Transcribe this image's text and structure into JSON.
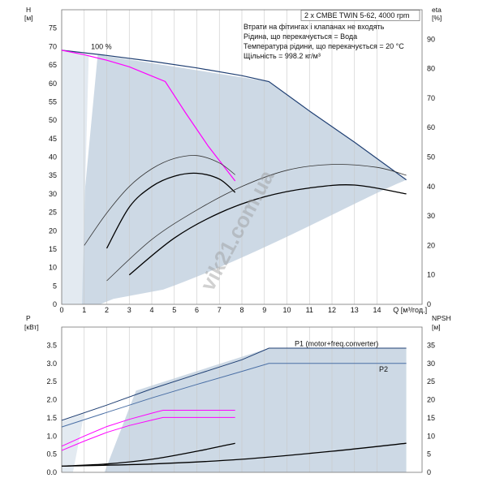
{
  "chart_data": [
    {
      "type": "line",
      "panel": "top",
      "y_label_left": "H",
      "y_unit_left": "[м]",
      "y_label_right": "eta",
      "y_unit_right": "[%]",
      "x_unit": "Q [м³/год.]",
      "xlim": [
        0,
        16
      ],
      "ylim_left": [
        0,
        80
      ],
      "ylim_right": [
        0,
        100
      ],
      "x_ticks": [
        0,
        1,
        2,
        3,
        4,
        5,
        6,
        7,
        8,
        9,
        10,
        11,
        12,
        13,
        14
      ],
      "y_ticks_left": [
        0,
        5,
        10,
        15,
        20,
        25,
        30,
        35,
        40,
        45,
        50,
        55,
        60,
        65,
        70,
        75
      ],
      "y_ticks_right": [
        0,
        10,
        20,
        30,
        40,
        50,
        60,
        70,
        80,
        90
      ],
      "title_box": "2 x CMBE TWIN 5-62, 4000 rpm",
      "notes": [
        "Втрати на фітингах і клапанах не входять",
        "Рідина, що перекачується = Вода",
        "Температура рідини, що перекачується = 20 °C",
        "Щільність = 998.2 кг/м³"
      ],
      "series_label": "100 %",
      "series": [
        {
          "name": "H twin",
          "axis": "left",
          "color": "#1f3f73",
          "x": [
            0,
            2,
            4,
            6,
            8,
            9.2,
            11,
            13,
            15.3
          ],
          "y": [
            69,
            67.6,
            66,
            64.2,
            62.1,
            60.5,
            52.5,
            44,
            33.8
          ]
        },
        {
          "name": "H single",
          "axis": "left",
          "color": "#ff00ff",
          "x": [
            0,
            1,
            2,
            3,
            4,
            4.6,
            5.5,
            6.5,
            7.7
          ],
          "y": [
            69,
            67.8,
            66.3,
            64.5,
            62,
            60.5,
            52,
            43,
            33.5
          ]
        },
        {
          "name": "eta single thin",
          "axis": "right",
          "color": "#333333",
          "x": [
            1,
            2,
            3,
            4,
            5,
            6,
            7,
            7.7
          ],
          "y": [
            20,
            31,
            40,
            46,
            49.5,
            50.5,
            48,
            44
          ]
        },
        {
          "name": "eta single thick",
          "axis": "right",
          "color": "#000000",
          "x": [
            2,
            3,
            4,
            5,
            6,
            7,
            7.7
          ],
          "y": [
            19,
            33,
            40,
            43.5,
            44.5,
            42.5,
            38
          ]
        },
        {
          "name": "eta twin thin",
          "axis": "right",
          "color": "#333333",
          "x": [
            2,
            4,
            6,
            8,
            10,
            12,
            14,
            15.3
          ],
          "y": [
            8,
            22,
            32,
            40,
            45.5,
            47.5,
            46.5,
            43.8
          ]
        },
        {
          "name": "eta twin thick",
          "axis": "right",
          "color": "#000000",
          "x": [
            3,
            5,
            7,
            9,
            11,
            13,
            15.3
          ],
          "y": [
            10,
            22.5,
            31,
            36.5,
            39.5,
            40.5,
            37.5
          ]
        }
      ]
    },
    {
      "type": "line",
      "panel": "bottom",
      "y_label_left": "P",
      "y_unit_left": "[кВт]",
      "y_label_right": "NPSH",
      "y_unit_right": "[м]",
      "xlim": [
        0,
        16
      ],
      "ylim_left": [
        0,
        4
      ],
      "ylim_right": [
        0,
        40
      ],
      "y_ticks_left": [
        0.0,
        0.5,
        1.0,
        1.5,
        2.0,
        2.5,
        3.0,
        3.5
      ],
      "y_ticks_right": [
        0,
        5,
        10,
        15,
        20,
        25,
        30,
        35
      ],
      "series": [
        {
          "name": "P1 (motor+freq.converter)",
          "axis": "left",
          "color": "#1f3f73",
          "x": [
            0,
            2,
            4,
            6,
            8,
            9.2,
            11,
            13,
            15.3
          ],
          "y": [
            1.43,
            1.85,
            2.3,
            2.7,
            3.1,
            3.42,
            3.42,
            3.42,
            3.42
          ]
        },
        {
          "name": "P2",
          "axis": "left",
          "color": "#4a6fa5",
          "x": [
            0,
            2,
            4,
            6,
            8,
            9.2,
            11,
            13,
            15.3
          ],
          "y": [
            1.25,
            1.65,
            2.05,
            2.42,
            2.78,
            3.0,
            3.0,
            3.0,
            3.0
          ]
        },
        {
          "name": "P1 single",
          "axis": "left",
          "color": "#ff00ff",
          "x": [
            0,
            1,
            2,
            3,
            4,
            4.5,
            7.7
          ],
          "y": [
            0.72,
            1.0,
            1.26,
            1.46,
            1.63,
            1.71,
            1.71
          ]
        },
        {
          "name": "P2 single",
          "axis": "left",
          "color": "#ff00ff",
          "x": [
            0,
            1,
            2,
            3,
            4,
            4.5,
            7.7
          ],
          "y": [
            0.6,
            0.86,
            1.1,
            1.29,
            1.44,
            1.51,
            1.51
          ]
        },
        {
          "name": "NPSH single",
          "axis": "right",
          "color": "#000000",
          "x": [
            0,
            2,
            4,
            6,
            7.7
          ],
          "y": [
            1.7,
            2.3,
            3.6,
            5.8,
            8.0
          ]
        },
        {
          "name": "NPSH twin",
          "axis": "right",
          "color": "#000000",
          "x": [
            0,
            4,
            8,
            12,
            15.3
          ],
          "y": [
            1.7,
            2.3,
            3.6,
            5.8,
            8.0
          ]
        }
      ],
      "labels": [
        "P1 (motor+freq.converter)",
        "P2"
      ]
    }
  ],
  "watermark": "vik21.com.ua",
  "x_axis_label_top": "Q [м³/год.]"
}
